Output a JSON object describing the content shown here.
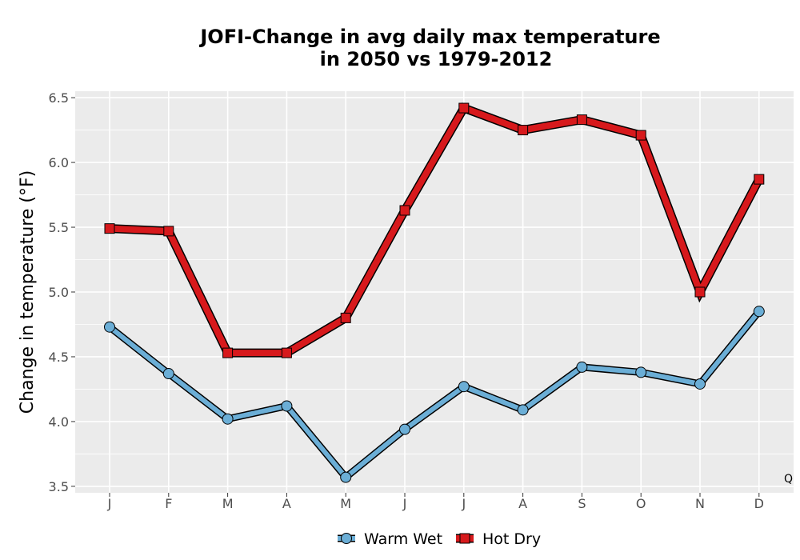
{
  "chart_data": {
    "type": "line",
    "title_line1": "JOFI-Change in avg daily max temperature",
    "title_line2": "in 2050 vs 1979-2012",
    "xlabel": "",
    "ylabel": "Change in temperature (°F)",
    "categories": [
      "J",
      "F",
      "M",
      "A",
      "M",
      "J",
      "J",
      "A",
      "S",
      "O",
      "N",
      "D"
    ],
    "ylim": [
      3.45,
      6.55
    ],
    "yticks": [
      3.5,
      4.0,
      4.5,
      5.0,
      5.5,
      6.0,
      6.5
    ],
    "ytick_labels": [
      "3.5",
      "4.0",
      "4.5",
      "5.0",
      "5.5",
      "6.0",
      "6.5"
    ],
    "grid": true,
    "legend_position": "bottom",
    "annotation": "Q",
    "series": [
      {
        "name": "Warm Wet",
        "marker": "circle",
        "color": "#6baed6",
        "values": [
          4.73,
          4.37,
          4.02,
          4.12,
          3.57,
          3.94,
          4.27,
          4.09,
          4.42,
          4.38,
          4.29,
          4.85
        ]
      },
      {
        "name": "Hot Dry",
        "marker": "square",
        "color": "#d7191c",
        "values": [
          5.49,
          5.47,
          4.53,
          4.53,
          4.8,
          5.63,
          6.42,
          6.25,
          6.33,
          6.21,
          5.0,
          5.87
        ]
      }
    ]
  }
}
